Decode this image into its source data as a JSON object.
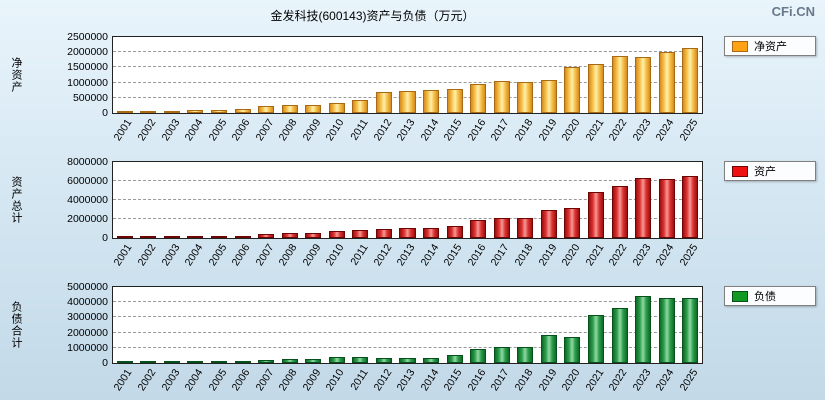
{
  "header": {
    "title": "金发科技(600143)资产与负债（万元）",
    "watermark": "CFi.CN"
  },
  "chart_data": [
    {
      "type": "bar",
      "ylabel": "净资产",
      "legend": "净资产",
      "legend_position": "right",
      "grid": true,
      "ylim": [
        0,
        2500000
      ],
      "yticks": [
        0,
        500000,
        1000000,
        1500000,
        2000000,
        2500000
      ],
      "categories": [
        "2001",
        "2002",
        "2003",
        "2004",
        "2005",
        "2006",
        "2007",
        "2008",
        "2009",
        "2010",
        "2011",
        "2012",
        "2013",
        "2014",
        "2015",
        "2016",
        "2017",
        "2018",
        "2019",
        "2020",
        "2021",
        "2022",
        "2023",
        "2024",
        "2025"
      ],
      "values": [
        20000,
        30000,
        50000,
        90000,
        100000,
        120000,
        220000,
        250000,
        280000,
        330000,
        420000,
        700000,
        730000,
        760000,
        790000,
        950000,
        1050000,
        1020000,
        1080000,
        1500000,
        1620000,
        1880000,
        1850000,
        2000000,
        2150000
      ],
      "colors": {
        "edge": "#D78A1E",
        "mid": "#F6C24A",
        "light": "#FFF0AE",
        "border": "#A86A14",
        "legend": "#FFA213"
      }
    },
    {
      "type": "bar",
      "ylabel": "资产总计",
      "legend": "资产",
      "legend_position": "right",
      "grid": true,
      "ylim": [
        0,
        8000000
      ],
      "yticks": [
        0,
        2000000,
        4000000,
        6000000,
        8000000
      ],
      "categories": [
        "2001",
        "2002",
        "2003",
        "2004",
        "2005",
        "2006",
        "2007",
        "2008",
        "2009",
        "2010",
        "2011",
        "2012",
        "2013",
        "2014",
        "2015",
        "2016",
        "2017",
        "2018",
        "2019",
        "2020",
        "2021",
        "2022",
        "2023",
        "2024",
        "2025"
      ],
      "values": [
        60000,
        70000,
        90000,
        160000,
        210000,
        260000,
        420000,
        500000,
        560000,
        700000,
        820000,
        1000000,
        1060000,
        1080000,
        1300000,
        1900000,
        2100000,
        2080000,
        2900000,
        3200000,
        4800000,
        5500000,
        6300000,
        6250000,
        6500000
      ],
      "colors": {
        "edge": "#9E0E0E",
        "mid": "#DD3333",
        "light": "#F49B94",
        "border": "#6E0505",
        "legend": "#EE1111"
      }
    },
    {
      "type": "bar",
      "ylabel": "负债合计",
      "legend": "负债",
      "legend_position": "right",
      "grid": true,
      "ylim": [
        0,
        5000000
      ],
      "yticks": [
        0,
        1000000,
        2000000,
        3000000,
        4000000,
        5000000
      ],
      "categories": [
        "2001",
        "2002",
        "2003",
        "2004",
        "2005",
        "2006",
        "2007",
        "2008",
        "2009",
        "2010",
        "2011",
        "2012",
        "2013",
        "2014",
        "2015",
        "2016",
        "2017",
        "2018",
        "2019",
        "2020",
        "2021",
        "2022",
        "2023",
        "2024",
        "2025"
      ],
      "values": [
        40000,
        40000,
        50000,
        70000,
        110000,
        140000,
        200000,
        260000,
        280000,
        370000,
        400000,
        310000,
        330000,
        320000,
        510000,
        950000,
        1060000,
        1060000,
        1820000,
        1700000,
        3150000,
        3650000,
        4400000,
        4250000,
        4300000
      ],
      "colors": {
        "edge": "#0B6B26",
        "mid": "#2E9E4C",
        "light": "#93D8A6",
        "border": "#07501B",
        "legend": "#119922"
      }
    }
  ]
}
